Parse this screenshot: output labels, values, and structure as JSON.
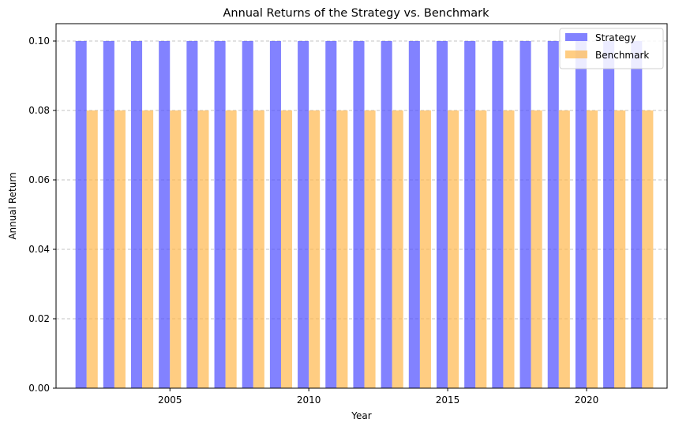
{
  "chart_data": {
    "type": "bar",
    "title": "Annual Returns of the Strategy vs. Benchmark",
    "xlabel": "Year",
    "ylabel": "Annual Return",
    "x": [
      2002,
      2003,
      2004,
      2005,
      2006,
      2007,
      2008,
      2009,
      2010,
      2011,
      2012,
      2013,
      2014,
      2015,
      2016,
      2017,
      2018,
      2019,
      2020,
      2021,
      2022
    ],
    "series": [
      {
        "name": "Strategy",
        "color": "#4d4dff",
        "values": [
          0.1,
          0.1,
          0.1,
          0.1,
          0.1,
          0.1,
          0.1,
          0.1,
          0.1,
          0.1,
          0.1,
          0.1,
          0.1,
          0.1,
          0.1,
          0.1,
          0.1,
          0.1,
          0.1,
          0.1,
          0.1
        ]
      },
      {
        "name": "Benchmark",
        "color": "#ffb84d",
        "values": [
          0.08,
          0.08,
          0.08,
          0.08,
          0.08,
          0.08,
          0.08,
          0.08,
          0.08,
          0.08,
          0.08,
          0.08,
          0.08,
          0.08,
          0.08,
          0.08,
          0.08,
          0.08,
          0.08,
          0.08,
          0.08
        ]
      }
    ],
    "xlim": [
      2000.9,
      2022.9
    ],
    "ylim": [
      0,
      0.105
    ],
    "xticks": [
      2005,
      2010,
      2015,
      2020
    ],
    "xtick_labels": [
      "2005",
      "2010",
      "2015",
      "2020"
    ],
    "yticks": [
      0.0,
      0.02,
      0.04,
      0.06,
      0.08,
      0.1
    ],
    "ytick_labels": [
      "0.00",
      "0.02",
      "0.04",
      "0.06",
      "0.08",
      "0.10"
    ],
    "grid": "y-dashed",
    "legend_position": "top-right"
  }
}
